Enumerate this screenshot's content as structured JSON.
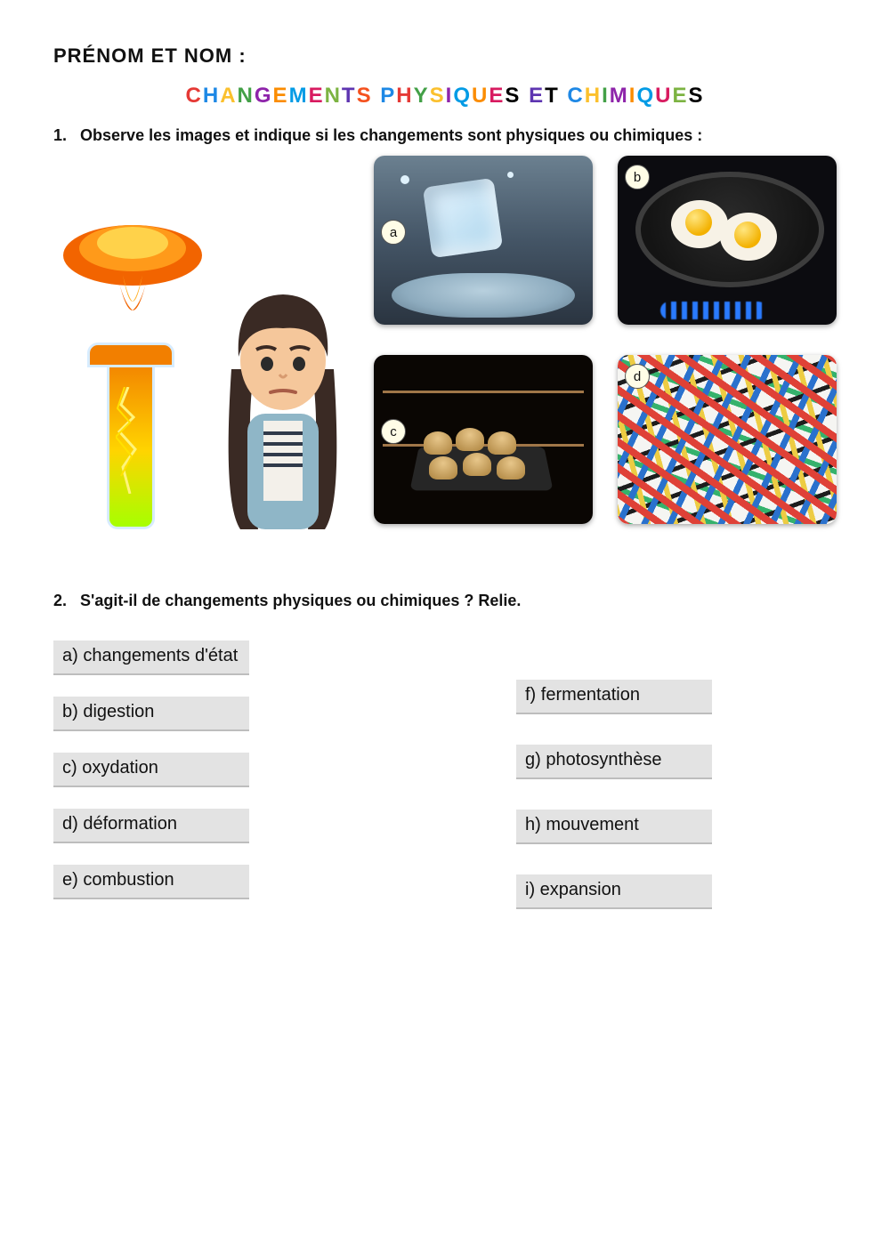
{
  "header": {
    "name_label": "PRÉNOM ET NOM :"
  },
  "title": {
    "text": "CHANGEMENTS PHYSIQUES ET CHIMIQUES",
    "letter_colors": [
      "#e53935",
      "#1e88e5",
      "#fbc02d",
      "#43a047",
      "#8e24aa",
      "#fb8c00",
      "#039be5",
      "#d81b60",
      "#7cb342",
      "#5e35b1",
      "#f4511e",
      "#000000",
      "#1e88e5",
      "#e53935",
      "#43a047",
      "#fbc02d",
      "#8e24aa",
      "#039be5",
      "#fb8c00",
      "#d81b60",
      "#000000",
      "#7cb342",
      "#5e35b1",
      "#000000",
      "#e53935",
      "#1e88e5",
      "#fbc02d",
      "#43a047",
      "#8e24aa",
      "#fb8c00",
      "#039be5",
      "#d81b60",
      "#7cb342"
    ]
  },
  "q1": {
    "num": "1.",
    "text": "Observe les images et indique si les changements sont physiques ou chimiques :",
    "labels": {
      "a": "a",
      "b": "b",
      "c": "c",
      "d": "d"
    }
  },
  "q2": {
    "num": "2.",
    "text": "S'agit-il de changements physiques ou chimiques ? Relie.",
    "left": [
      "a) changements d'état",
      "b) digestion",
      "c) oxydation",
      "d) déformation",
      "e) combustion"
    ],
    "right": [
      "f) fermentation",
      "g) photosynthèse",
      "h) mouvement",
      "i) expansion"
    ]
  },
  "style": {
    "tag_bg": "#e3e3e3",
    "page_bg": "#ffffff"
  }
}
